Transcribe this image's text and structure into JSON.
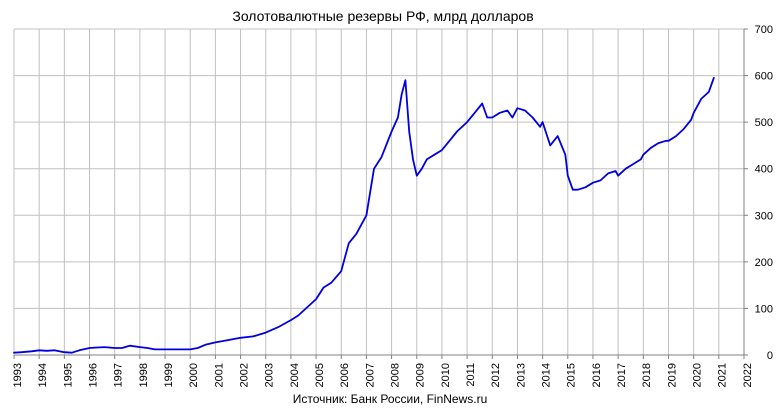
{
  "chart_data": {
    "type": "line",
    "title": "Золотовалютные резервы РФ, млрд долларов",
    "source": "Источник: Банк России, FinNews.ru",
    "xlabel": "",
    "ylabel": "",
    "xlim": [
      1993,
      2022
    ],
    "ylim": [
      0,
      700
    ],
    "x_ticks": [
      "1993",
      "1994",
      "1995",
      "1996",
      "1997",
      "1998",
      "1999",
      "2000",
      "2001",
      "2002",
      "2003",
      "2004",
      "2005",
      "2006",
      "2007",
      "2008",
      "2009",
      "2010",
      "2011",
      "2012",
      "2013",
      "2014",
      "2015",
      "2016",
      "2017",
      "2018",
      "2019",
      "2020",
      "2021",
      "2022"
    ],
    "y_ticks": [
      0,
      100,
      200,
      300,
      400,
      500,
      600,
      700
    ],
    "y_axis_side": "right",
    "grid": true,
    "legend": "none",
    "colors": {
      "line": "#0000e0",
      "grid": "#c0c0c0",
      "axis": "#808080"
    },
    "series": [
      {
        "x": [
          1993.0,
          1993.3,
          1993.7,
          1994.0,
          1994.3,
          1994.6,
          1995.0,
          1995.3,
          1995.6,
          1996.0,
          1996.3,
          1996.6,
          1997.0,
          1997.3,
          1997.6,
          1998.0,
          1998.3,
          1998.6,
          1999.0,
          1999.3,
          1999.6,
          2000.0,
          2000.3,
          2000.6,
          2001.0,
          2001.5,
          2002.0,
          2002.5,
          2003.0,
          2003.5,
          2004.0,
          2004.3,
          2004.6,
          2005.0,
          2005.3,
          2005.6,
          2006.0,
          2006.3,
          2006.6,
          2007.0,
          2007.3,
          2007.6,
          2008.0,
          2008.25,
          2008.4,
          2008.55,
          2008.7,
          2008.85,
          2009.0,
          2009.2,
          2009.4,
          2009.7,
          2010.0,
          2010.3,
          2010.6,
          2011.0,
          2011.3,
          2011.6,
          2011.8,
          2012.0,
          2012.3,
          2012.6,
          2012.8,
          2013.0,
          2013.3,
          2013.6,
          2013.9,
          2014.0,
          2014.3,
          2014.6,
          2014.9,
          2015.0,
          2015.2,
          2015.4,
          2015.7,
          2016.0,
          2016.3,
          2016.6,
          2016.9,
          2017.0,
          2017.3,
          2017.6,
          2017.9,
          2018.0,
          2018.3,
          2018.6,
          2018.9,
          2019.0,
          2019.3,
          2019.6,
          2019.9,
          2020.0,
          2020.3,
          2020.6,
          2020.8
        ],
        "values": [
          5,
          6,
          8,
          10,
          9,
          10,
          6,
          5,
          10,
          15,
          16,
          17,
          15,
          15,
          20,
          17,
          15,
          12,
          12,
          12,
          12,
          12,
          15,
          22,
          27,
          32,
          37,
          40,
          48,
          60,
          75,
          85,
          100,
          120,
          145,
          155,
          180,
          240,
          260,
          300,
          400,
          425,
          480,
          510,
          560,
          590,
          480,
          420,
          385,
          400,
          420,
          430,
          440,
          460,
          480,
          500,
          520,
          540,
          510,
          510,
          520,
          525,
          510,
          530,
          525,
          510,
          490,
          500,
          450,
          470,
          430,
          385,
          355,
          355,
          360,
          370,
          375,
          390,
          395,
          385,
          400,
          410,
          420,
          430,
          445,
          455,
          460,
          460,
          470,
          485,
          505,
          520,
          550,
          565,
          595
        ]
      }
    ]
  }
}
